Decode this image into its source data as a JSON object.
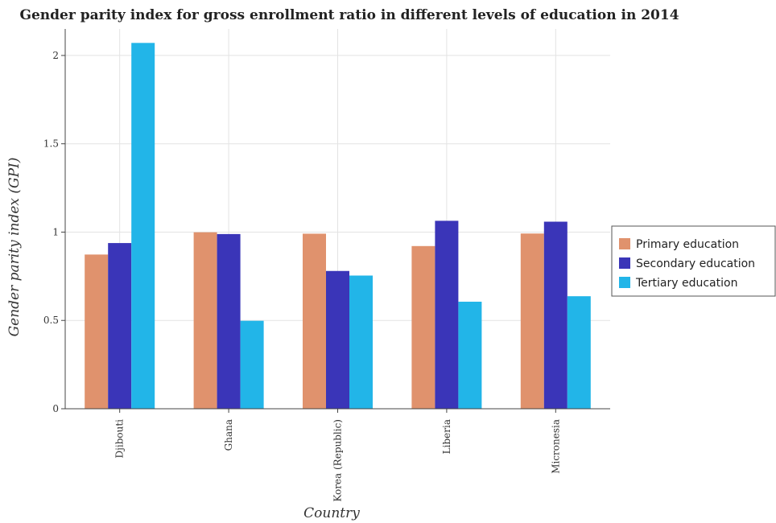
{
  "chart_data": {
    "type": "bar",
    "title": "Gender parity index for gross enrollment ratio in different levels of education in 2014",
    "xlabel": "Country",
    "ylabel": "Gender parity index (GPI)",
    "categories": [
      "Djibouti",
      "Ghana",
      "Korea (Republic)",
      "Liberia",
      "Micronesia"
    ],
    "ylim": [
      0,
      2.15
    ],
    "yticks": [
      "0",
      "0.5",
      "1",
      "1.5",
      "2"
    ],
    "ytick_values": [
      0,
      0.5,
      1,
      1.5,
      2
    ],
    "grid": true,
    "legend_position": "right",
    "series": [
      {
        "name": "Primary education",
        "color": "#e0926d",
        "values": [
          0.873,
          0.999,
          0.991,
          0.921,
          0.992
        ]
      },
      {
        "name": "Secondary education",
        "color": "#3a35b8",
        "values": [
          0.938,
          0.989,
          0.78,
          1.064,
          1.059
        ]
      },
      {
        "name": "Tertiary education",
        "color": "#22b5e8",
        "values": [
          2.071,
          0.498,
          0.754,
          0.606,
          0.637
        ]
      }
    ]
  }
}
